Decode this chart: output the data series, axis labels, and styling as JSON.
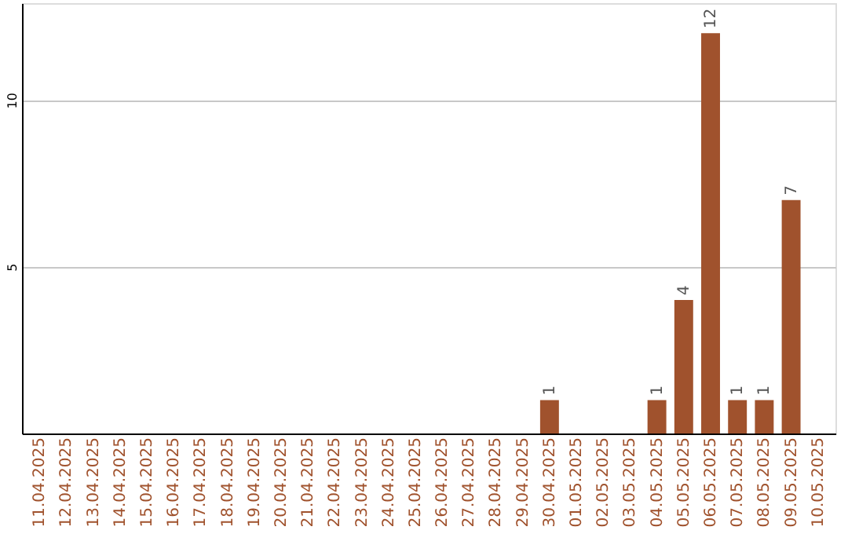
{
  "chart_data": {
    "type": "bar",
    "categories": [
      "11.04.2025",
      "12.04.2025",
      "13.04.2025",
      "14.04.2025",
      "15.04.2025",
      "16.04.2025",
      "17.04.2025",
      "18.04.2025",
      "19.04.2025",
      "20.04.2025",
      "21.04.2025",
      "22.04.2025",
      "23.04.2025",
      "24.04.2025",
      "25.04.2025",
      "26.04.2025",
      "27.04.2025",
      "28.04.2025",
      "29.04.2025",
      "30.04.2025",
      "01.05.2025",
      "02.05.2025",
      "03.05.2025",
      "04.05.2025",
      "05.05.2025",
      "06.05.2025",
      "07.05.2025",
      "08.05.2025",
      "09.05.2025",
      "10.05.2025"
    ],
    "values": [
      0,
      0,
      0,
      0,
      0,
      0,
      0,
      0,
      0,
      0,
      0,
      0,
      0,
      0,
      0,
      0,
      0,
      0,
      0,
      1,
      0,
      0,
      0,
      1,
      4,
      12,
      1,
      1,
      7,
      0
    ],
    "value_labels": [
      null,
      null,
      null,
      null,
      null,
      null,
      null,
      null,
      null,
      null,
      null,
      null,
      null,
      null,
      null,
      null,
      null,
      null,
      null,
      "1",
      null,
      null,
      null,
      "1",
      "4",
      "12",
      "1",
      "1",
      "7",
      null
    ],
    "color": "#a0522d",
    "ylim": [
      0,
      12.9
    ],
    "yticks": [
      5,
      10
    ],
    "grid": "y"
  }
}
